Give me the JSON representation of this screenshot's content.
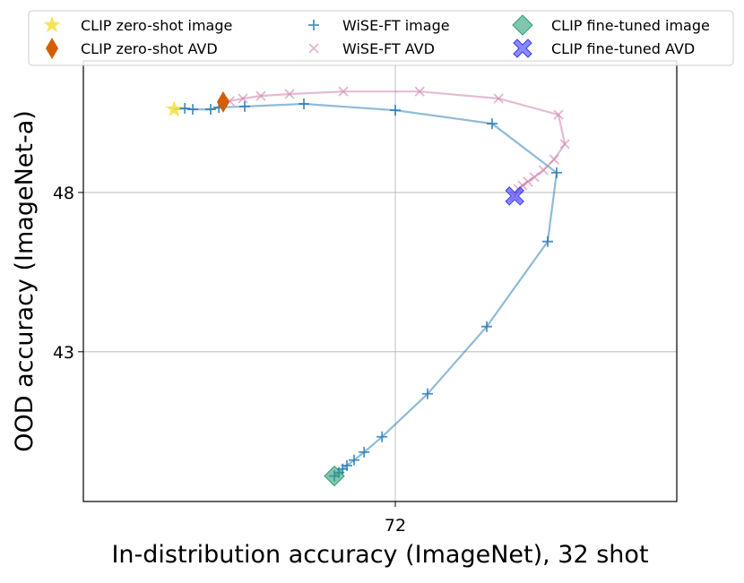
{
  "chart_data": {
    "type": "scatter",
    "xlabel": "In-distribution accuracy (ImageNet), 32 shot",
    "ylabel": "OOD accuracy (ImageNet-a)",
    "xlim": [
      63.3,
      79.85
    ],
    "ylim": [
      38.3,
      52.13
    ],
    "xticks": [
      72
    ],
    "yticks": [
      43,
      48
    ],
    "grid": true,
    "legend": "top",
    "series": [
      {
        "name": "CLIP zero-shot image",
        "color": "#f2dd30",
        "marker": "star",
        "line": false,
        "x": [
          65.83
        ],
        "y": [
          50.61
        ]
      },
      {
        "name": "CLIP zero-shot AVD",
        "color": "#d55e00",
        "marker": "diamond",
        "line": false,
        "x": [
          67.2
        ],
        "y": [
          50.84
        ]
      },
      {
        "name": "WiSE-FT image",
        "color": "#1f77b4",
        "marker": "plus",
        "line": true,
        "x": [
          65.83,
          66.13,
          66.35,
          66.85,
          67.08,
          67.8,
          69.45,
          72.0,
          74.7,
          76.5,
          76.25,
          74.55,
          72.9,
          71.63,
          71.13,
          70.85,
          70.65,
          70.53,
          70.43,
          70.3
        ],
        "y": [
          50.61,
          50.64,
          50.61,
          50.61,
          50.67,
          50.7,
          50.78,
          50.58,
          50.16,
          48.62,
          46.46,
          43.79,
          41.68,
          40.33,
          39.85,
          39.6,
          39.43,
          39.32,
          39.21,
          39.1
        ]
      },
      {
        "name": "WiSE-FT AVD",
        "color": "#cc79a7",
        "marker": "x",
        "line": true,
        "x": [
          67.2,
          67.38,
          67.75,
          68.25,
          69.05,
          70.55,
          72.68,
          74.88,
          76.55,
          76.73,
          76.43,
          76.13,
          75.88,
          75.7,
          75.55,
          75.43,
          75.33
        ],
        "y": [
          50.84,
          50.87,
          50.95,
          51.03,
          51.09,
          51.17,
          51.17,
          50.95,
          50.44,
          49.52,
          49.04,
          48.7,
          48.48,
          48.34,
          48.22,
          48.11,
          47.89
        ]
      },
      {
        "name": "CLIP fine-tuned image",
        "color": "#2ca079",
        "marker": "bigdiamond",
        "line": false,
        "x": [
          70.3
        ],
        "y": [
          39.1
        ]
      },
      {
        "name": "CLIP fine-tuned AVD",
        "color": "#3b3bff",
        "marker": "fatx",
        "line": false,
        "x": [
          75.33
        ],
        "y": [
          47.89
        ]
      }
    ]
  }
}
